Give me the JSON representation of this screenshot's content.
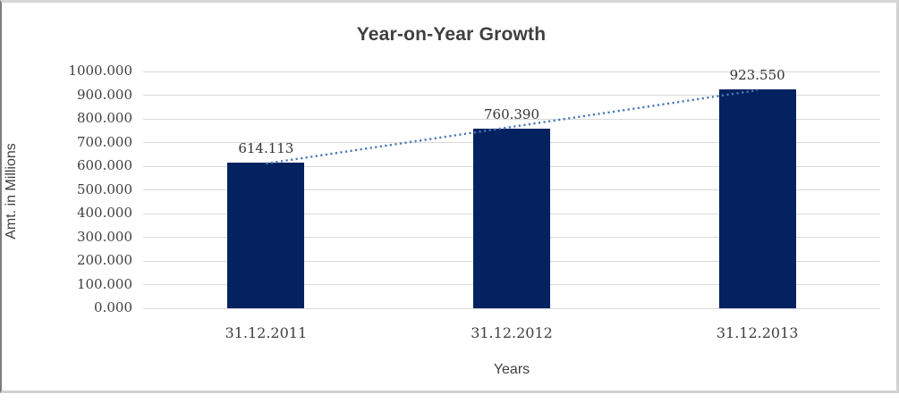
{
  "chart_data": {
    "type": "bar",
    "title": "Year-on-Year Growth",
    "xlabel": "Years",
    "ylabel": "Amt. in Millions",
    "categories": [
      "31.12.2011",
      "31.12.2012",
      "31.12.2013"
    ],
    "values": [
      614.113,
      760.39,
      923.55
    ],
    "value_labels": [
      "614.113",
      "760.390",
      "923.550"
    ],
    "ytick_labels": [
      "0.000",
      "100.000",
      "200.000",
      "300.000",
      "400.000",
      "500.000",
      "600.000",
      "700.000",
      "800.000",
      "900.000",
      "1000.000"
    ],
    "ylim": [
      0,
      1000
    ],
    "grid": true,
    "legend": false,
    "bar_color": "#052260",
    "gridline_color": "#d9d9d9",
    "text_color": "#3f3f3f",
    "trendline": {
      "type": "linear",
      "style": "dotted",
      "color": "#4a7ab8"
    }
  }
}
